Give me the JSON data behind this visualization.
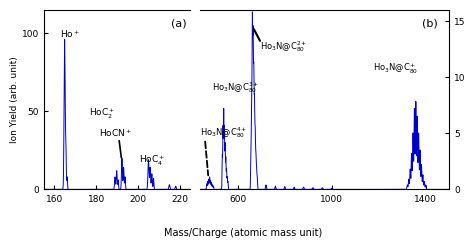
{
  "panel_a": {
    "xlim": [
      155,
      225
    ],
    "ylim": [
      0,
      115
    ],
    "yticks": [
      0,
      50,
      100
    ],
    "xticks": [
      160,
      180,
      200,
      220
    ],
    "label": "(a)"
  },
  "panel_b": {
    "xlim": [
      440,
      1500
    ],
    "ylim": [
      0,
      16
    ],
    "yticks": [
      0,
      5,
      10,
      15
    ],
    "xticks": [
      600,
      1000,
      1400
    ],
    "label": "(b)"
  },
  "ylabel": "Ion Yield (arb. unit)",
  "xlabel": "Mass/Charge (atomic mass unit)",
  "line_color": "#0000CC",
  "bg_color": "#ffffff"
}
